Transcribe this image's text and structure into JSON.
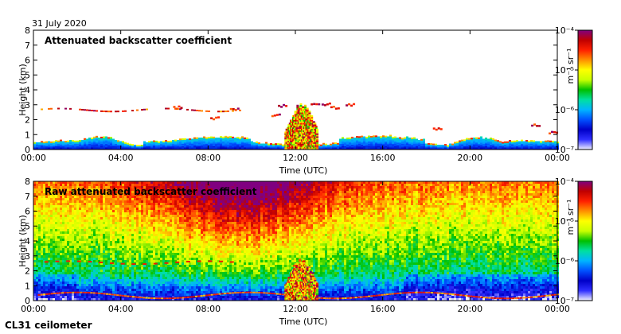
{
  "date_label": "31 July 2020",
  "instrument_label": "CL31 ceilometer",
  "colors": {
    "background_panel": "#ffffff",
    "colormap": [
      "#f2f2ff",
      "#3030ff",
      "#0000c8",
      "#0050ff",
      "#00b4ff",
      "#00e0a0",
      "#00c000",
      "#c8ff00",
      "#ffff00",
      "#ff9000",
      "#ff2000",
      "#c00000",
      "#800080"
    ]
  },
  "chart_data": [
    {
      "type": "heatmap",
      "title": "Attenuated backscatter coefficient",
      "xlabel": "Time (UTC)",
      "ylabel": "Height (km)",
      "xlim": [
        0,
        24
      ],
      "ylim": [
        0,
        8
      ],
      "x_tick_labels": [
        "00:00",
        "04:00",
        "08:00",
        "12:00",
        "16:00",
        "20:00",
        "00:00"
      ],
      "x_tick_values": [
        0,
        4,
        8,
        12,
        16,
        20,
        24
      ],
      "y_tick_labels": [
        "0",
        "1",
        "2",
        "3",
        "4",
        "5",
        "6",
        "7",
        "8"
      ],
      "y_tick_values": [
        0,
        1,
        2,
        3,
        4,
        5,
        6,
        7,
        8
      ],
      "colorbar": {
        "label": "m⁻¹ sr⁻¹",
        "scale": "log",
        "range": [
          1e-07,
          0.0001
        ],
        "tick_labels": [
          "10⁻⁴",
          "10⁻⁵",
          "10⁻⁶",
          "10⁻⁷"
        ],
        "tick_exponents": [
          -4,
          -5,
          -6,
          -7
        ]
      },
      "features": {
        "boundary_layer_km": [
          0.5,
          1.0
        ],
        "residual_layer_km": 2.7,
        "convective_clouds_utc": [
          11.5,
          13.0
        ],
        "cloud_tops_km": 3.2
      }
    },
    {
      "type": "heatmap",
      "title": "Raw attenuated backscatter coefficient",
      "xlabel": "Time (UTC)",
      "ylabel": "Height (km)",
      "xlim": [
        0,
        24
      ],
      "ylim": [
        0,
        8
      ],
      "x_tick_labels": [
        "00:00",
        "04:00",
        "08:00",
        "12:00",
        "16:00",
        "20:00",
        "00:00"
      ],
      "x_tick_values": [
        0,
        4,
        8,
        12,
        16,
        20,
        24
      ],
      "y_tick_labels": [
        "0",
        "1",
        "2",
        "3",
        "4",
        "5",
        "6",
        "7",
        "8"
      ],
      "y_tick_values": [
        0,
        1,
        2,
        3,
        4,
        5,
        6,
        7,
        8
      ],
      "colorbar": {
        "label": "m⁻¹ sr⁻¹",
        "scale": "log",
        "range": [
          1e-07,
          0.0001
        ],
        "tick_labels": [
          "10⁻⁴",
          "10⁻⁵",
          "10⁻⁶",
          "10⁻⁷"
        ],
        "tick_exponents": [
          -4,
          -5,
          -6,
          -7
        ]
      }
    }
  ]
}
